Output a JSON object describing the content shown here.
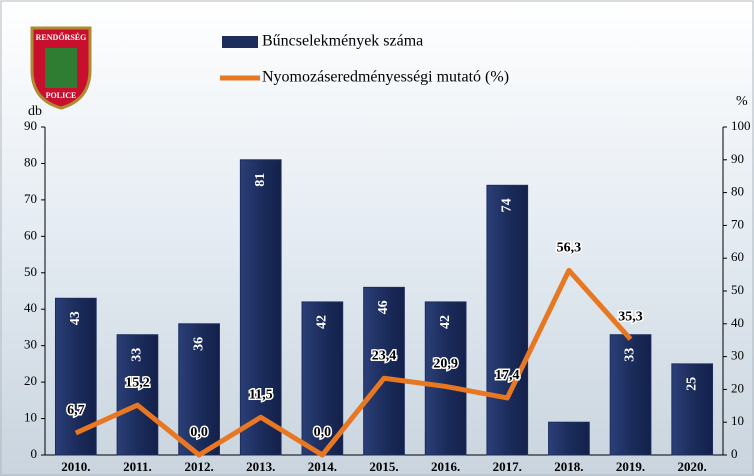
{
  "logo": {
    "top": "RENDŐRSÉG",
    "bottom": "POLICE"
  },
  "chart_data": {
    "type": "bar-line",
    "ylabel": "db",
    "y2label": "%",
    "categories": [
      "2010.",
      "2011.",
      "2012.",
      "2013.",
      "2014.",
      "2015.",
      "2016.",
      "2017.",
      "2018.",
      "2019.",
      "2020."
    ],
    "series": [
      {
        "name": "Bűncselekmények száma",
        "type": "bar",
        "color": "#1c2d5c",
        "values": [
          43,
          33,
          36,
          81,
          42,
          46,
          42,
          74,
          9,
          33,
          25
        ],
        "value_labels": [
          "43",
          "33",
          "36",
          "81",
          "42",
          "46",
          "42",
          "74",
          null,
          "33",
          "25"
        ]
      },
      {
        "name": "Nyomozáseredményességi mutató (%)",
        "type": "line",
        "axis": "y2",
        "color": "#e87722",
        "values": [
          6.7,
          15.2,
          0.0,
          11.5,
          0.0,
          23.4,
          20.9,
          17.4,
          56.3,
          35.3,
          null
        ],
        "value_labels": [
          "6,7",
          "15,2",
          "0,0",
          "11,5",
          "0,0",
          "23,4",
          "20,9",
          "17,4",
          "56,3",
          "35,3",
          null
        ]
      }
    ],
    "ylim": [
      0,
      90
    ],
    "yticks": [
      0,
      10,
      20,
      30,
      40,
      50,
      60,
      70,
      80,
      90
    ],
    "y2lim": [
      0,
      100
    ],
    "y2ticks": [
      0,
      10,
      20,
      30,
      40,
      50,
      60,
      70,
      80,
      90,
      100
    ]
  }
}
